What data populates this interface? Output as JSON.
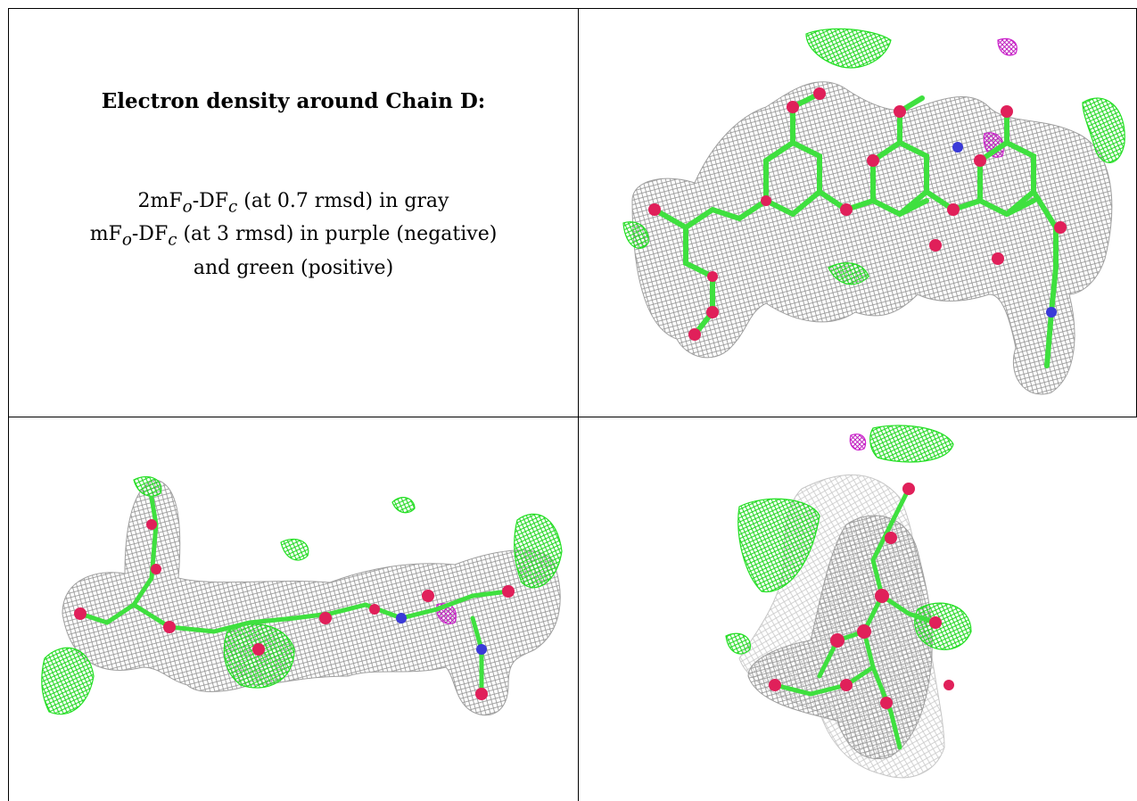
{
  "caption": {
    "title": "Electron density around Chain D:",
    "line1": {
      "prefix": "2mF",
      "sub1": "o",
      "mid": "-DF",
      "sub2": "c",
      "suffix": " (at 0.7 rmsd) in gray"
    },
    "line2": {
      "prefix": "mF",
      "sub1": "o",
      "mid": "-DF",
      "sub2": "c",
      "suffix": " (at 3 rmsd) in purple (negative)"
    },
    "line3": "and green (positive)"
  },
  "colors": {
    "mesh_gray": "#9a9a9a",
    "positive_green": "#22e022",
    "negative_purple": "#cc22cc",
    "oxygen": "#e0205a",
    "nitrogen": "#3a3ad8",
    "stick": "#3fe03f"
  },
  "panels": [
    {
      "name": "density-view-top-right"
    },
    {
      "name": "density-view-bottom-left"
    },
    {
      "name": "density-view-bottom-right"
    }
  ]
}
